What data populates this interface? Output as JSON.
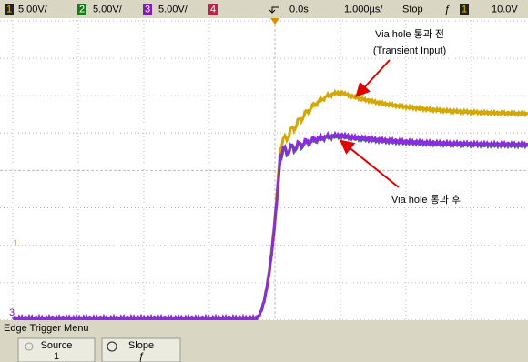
{
  "top_bar": {
    "channels": [
      {
        "number": "1",
        "scale": "5.00V/"
      },
      {
        "number": "2",
        "scale": "5.00V/"
      },
      {
        "number": "3",
        "scale": "5.00V/"
      },
      {
        "number": "4"
      }
    ],
    "time_offset": "0.0s",
    "time_scale": "1.000µs/",
    "run_state": "Stop",
    "trigger_slope": "ƒ",
    "trigger_source": "1",
    "trigger_level": "10.0V"
  },
  "screen_markers": {
    "ch1": "1",
    "ch3": "3"
  },
  "annotations": {
    "before": "Via hole 통과 전",
    "before_note": "(Transient Input)",
    "after": "Via hole 통과 후"
  },
  "menu": {
    "title": "Edge Trigger Menu",
    "softkeys": [
      {
        "label": "Source",
        "value": "1"
      },
      {
        "label": "Slope",
        "value": "ƒ"
      }
    ]
  }
}
